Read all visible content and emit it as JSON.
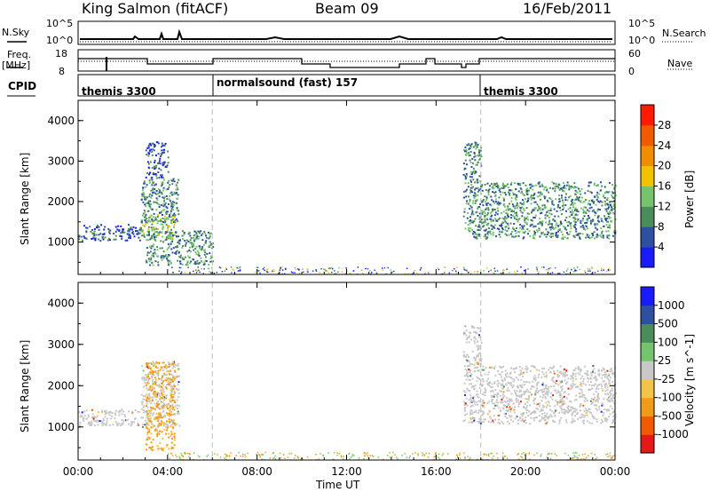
{
  "header": {
    "radar": "King Salmon (fitACF)",
    "beam": "Beam 09",
    "date": "16/Feb/2011"
  },
  "top_panel": {
    "nsky_label": "N.Sky",
    "nsky_ticks": [
      "10^5",
      "10^0"
    ],
    "nsearch_label": "N.Search",
    "nsearch_ticks": [
      "10^5",
      "10^0"
    ],
    "freq_label_line1": "Freq.",
    "freq_label_line2": "[MHz]",
    "freq_ticks": [
      "18",
      "8"
    ],
    "nave_label": "Nave",
    "nave_ticks": [
      "60",
      "0"
    ],
    "cpid_label": "CPID",
    "cpid_segments": [
      "themis 3300",
      "normalsound (fast) 157",
      "themis 3300"
    ]
  },
  "colors": {
    "power_scale": [
      "#1a1aff",
      "#2d4fa0",
      "#4a8c5a",
      "#74c46b",
      "#f2c200",
      "#f28c00",
      "#f25a00",
      "#ff1a00"
    ],
    "velocity_scale": [
      "#e61919",
      "#f25a00",
      "#f29b1a",
      "#f2c24a",
      "#c8c8c8",
      "#74c46b",
      "#4a8c5a",
      "#2d4fa0",
      "#1a1aff"
    ],
    "ground_scatter": "#c8c8c8"
  },
  "chart_data": [
    {
      "type": "heatmap",
      "title": "Power",
      "ylabel": "Slant Range [km]",
      "xlabel": "Time UT",
      "x_ticks": [
        "00:00",
        "04:00",
        "08:00",
        "12:00",
        "16:00",
        "20:00",
        "00:00"
      ],
      "y_ticks": [
        1000,
        2000,
        3000,
        4000
      ],
      "ylim": [
        200,
        4500
      ],
      "xlim_hours": [
        0,
        24
      ],
      "colorbar_label": "Power [dB]",
      "colorbar_ticks": [
        "4",
        "8",
        "12",
        "16",
        "20",
        "24",
        "28"
      ],
      "regions": [
        {
          "t": [
            0.0,
            2.8
          ],
          "r": [
            1050,
            1450
          ],
          "level": "weak"
        },
        {
          "t": [
            2.8,
            4.3
          ],
          "r": [
            1100,
            1700
          ],
          "level": "strong"
        },
        {
          "t": [
            2.8,
            4.5
          ],
          "r": [
            1500,
            2600
          ],
          "level": "medium"
        },
        {
          "t": [
            3.0,
            4.0
          ],
          "r": [
            2600,
            3500
          ],
          "level": "weak"
        },
        {
          "t": [
            3.0,
            6.0
          ],
          "r": [
            450,
            1300
          ],
          "level": "medium"
        },
        {
          "t": [
            17.2,
            18.0
          ],
          "r": [
            1100,
            3500
          ],
          "level": "medium"
        },
        {
          "t": [
            18.0,
            24.0
          ],
          "r": [
            1100,
            2500
          ],
          "level": "medium"
        }
      ]
    },
    {
      "type": "heatmap",
      "title": "Velocity",
      "ylabel": "Slant Range [km]",
      "xlabel": "Time UT",
      "x_ticks": [
        "00:00",
        "04:00",
        "08:00",
        "12:00",
        "16:00",
        "20:00",
        "00:00"
      ],
      "y_ticks": [
        1000,
        2000,
        3000,
        4000
      ],
      "ylim": [
        200,
        4500
      ],
      "xlim_hours": [
        0,
        24
      ],
      "colorbar_label": "Velocity [m s^-1]",
      "colorbar_ticks": [
        "1000",
        "500",
        "100",
        "25",
        "-25",
        "-100",
        "-500",
        "-1000"
      ],
      "regions": [
        {
          "t": [
            0.0,
            2.8
          ],
          "r": [
            1050,
            1450
          ],
          "level": "ground"
        },
        {
          "t": [
            2.8,
            4.5
          ],
          "r": [
            1000,
            2600
          ],
          "level": "ground"
        },
        {
          "t": [
            3.0,
            4.3
          ],
          "r": [
            450,
            2600
          ],
          "level": "orange"
        },
        {
          "t": [
            17.2,
            18.0
          ],
          "r": [
            1100,
            3500
          ],
          "level": "ground"
        },
        {
          "t": [
            18.0,
            24.0
          ],
          "r": [
            1100,
            2500
          ],
          "level": "ground"
        }
      ]
    }
  ]
}
